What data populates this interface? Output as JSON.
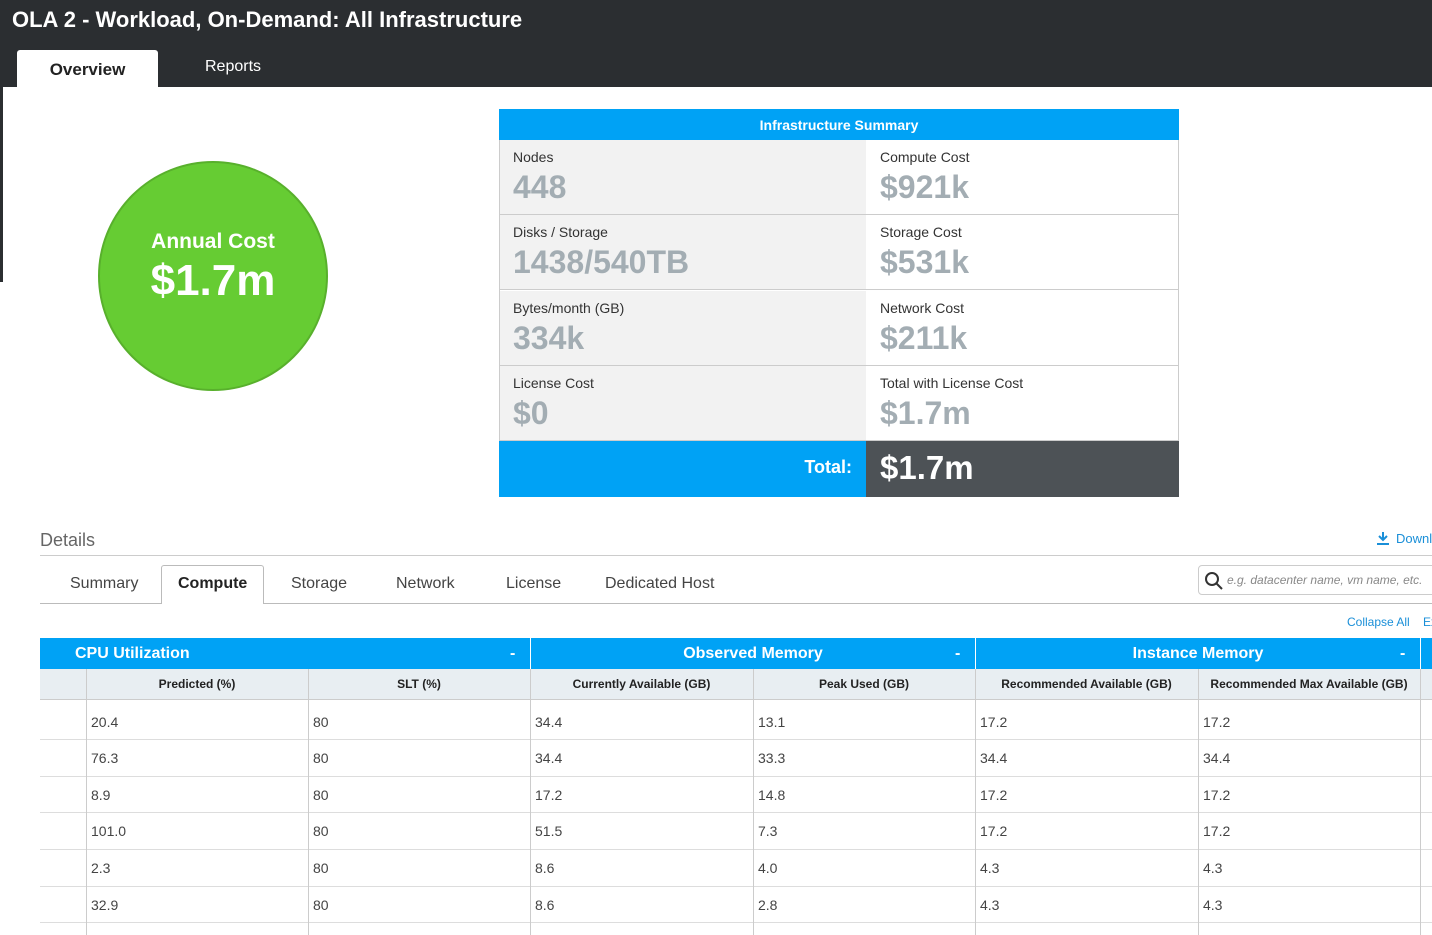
{
  "header": {
    "title": "OLA 2 - Workload, On-Demand: All Infrastructure",
    "tabs": [
      "Overview",
      "Reports"
    ]
  },
  "annual": {
    "label": "Annual Cost",
    "value": "$1.7m"
  },
  "summary": {
    "title": "Infrastructure Summary",
    "cells": [
      {
        "label": "Nodes",
        "value": "448"
      },
      {
        "label": "Compute Cost",
        "value": "$921k"
      },
      {
        "label": "Disks / Storage",
        "value": "1438/540TB"
      },
      {
        "label": "Storage Cost",
        "value": "$531k"
      },
      {
        "label": "Bytes/month (GB)",
        "value": "334k"
      },
      {
        "label": "Network Cost",
        "value": "$211k"
      },
      {
        "label": "License Cost",
        "value": "$0"
      },
      {
        "label": "Total with License Cost",
        "value": "$1.7m"
      }
    ],
    "total_label": "Total:",
    "total_value": "$1.7m"
  },
  "details": {
    "title": "Details",
    "download": "Download",
    "tabs": [
      "Summary",
      "Compute",
      "Storage",
      "Network",
      "License",
      "Dedicated Host"
    ],
    "search_placeholder": "e.g. datacenter name, vm name, etc.",
    "collapse": "Collapse All",
    "expand": "Expand All"
  },
  "table": {
    "groups": [
      {
        "name": "CPU Utilization",
        "toggle": "-"
      },
      {
        "name": "Observed Memory",
        "toggle": "-"
      },
      {
        "name": "Instance Memory",
        "toggle": "-"
      }
    ],
    "columns": [
      "Predicted (%)",
      "SLT (%)",
      "Currently Available (GB)",
      "Peak Used (GB)",
      "Recommended Available (GB)",
      "Recommended Max Available (GB)"
    ],
    "rows": [
      [
        "20.4",
        "80",
        "34.4",
        "13.1",
        "17.2",
        "17.2"
      ],
      [
        "76.3",
        "80",
        "34.4",
        "33.3",
        "34.4",
        "34.4"
      ],
      [
        "8.9",
        "80",
        "17.2",
        "14.8",
        "17.2",
        "17.2"
      ],
      [
        "101.0",
        "80",
        "51.5",
        "7.3",
        "17.2",
        "17.2"
      ],
      [
        "2.3",
        "80",
        "8.6",
        "4.0",
        "4.3",
        "4.3"
      ],
      [
        "32.9",
        "80",
        "8.6",
        "2.8",
        "4.3",
        "4.3"
      ]
    ]
  }
}
